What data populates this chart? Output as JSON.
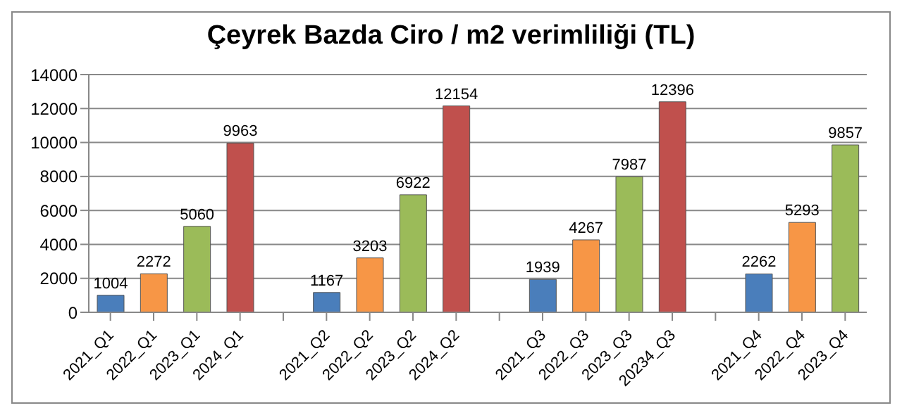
{
  "chart_data": {
    "type": "bar",
    "title": "Çeyrek Bazda Ciro / m2 verimliliği (TL)",
    "categories": [
      "2021_Q1",
      "2022_Q1",
      "2023_Q1",
      "2024_Q1",
      null,
      "2021_Q2",
      "2022_Q2",
      "2023_Q2",
      "2024_Q2",
      null,
      "2021_Q3",
      "2022_Q3",
      "2023_Q3",
      "20234_Q3",
      null,
      "2021_Q4",
      "2022_Q4",
      "2023_Q4"
    ],
    "values": [
      1004,
      2272,
      5060,
      9963,
      null,
      1167,
      3203,
      6922,
      12154,
      null,
      1939,
      4267,
      7987,
      12396,
      null,
      2262,
      5293,
      9857
    ],
    "colors": [
      "#4a7ebb",
      "#f79646",
      "#9bbb59",
      "#c0504d",
      "#ffffff",
      "#4a7ebb",
      "#f79646",
      "#9bbb59",
      "#c0504d",
      "#ffffff",
      "#4a7ebb",
      "#f79646",
      "#9bbb59",
      "#c0504d",
      "#ffffff",
      "#4a7ebb",
      "#f79646",
      "#9bbb59"
    ],
    "ylim": [
      0,
      14000
    ],
    "yticks": [
      0,
      2000,
      4000,
      6000,
      8000,
      10000,
      12000,
      14000
    ],
    "grid": "y",
    "data_labels": true
  }
}
